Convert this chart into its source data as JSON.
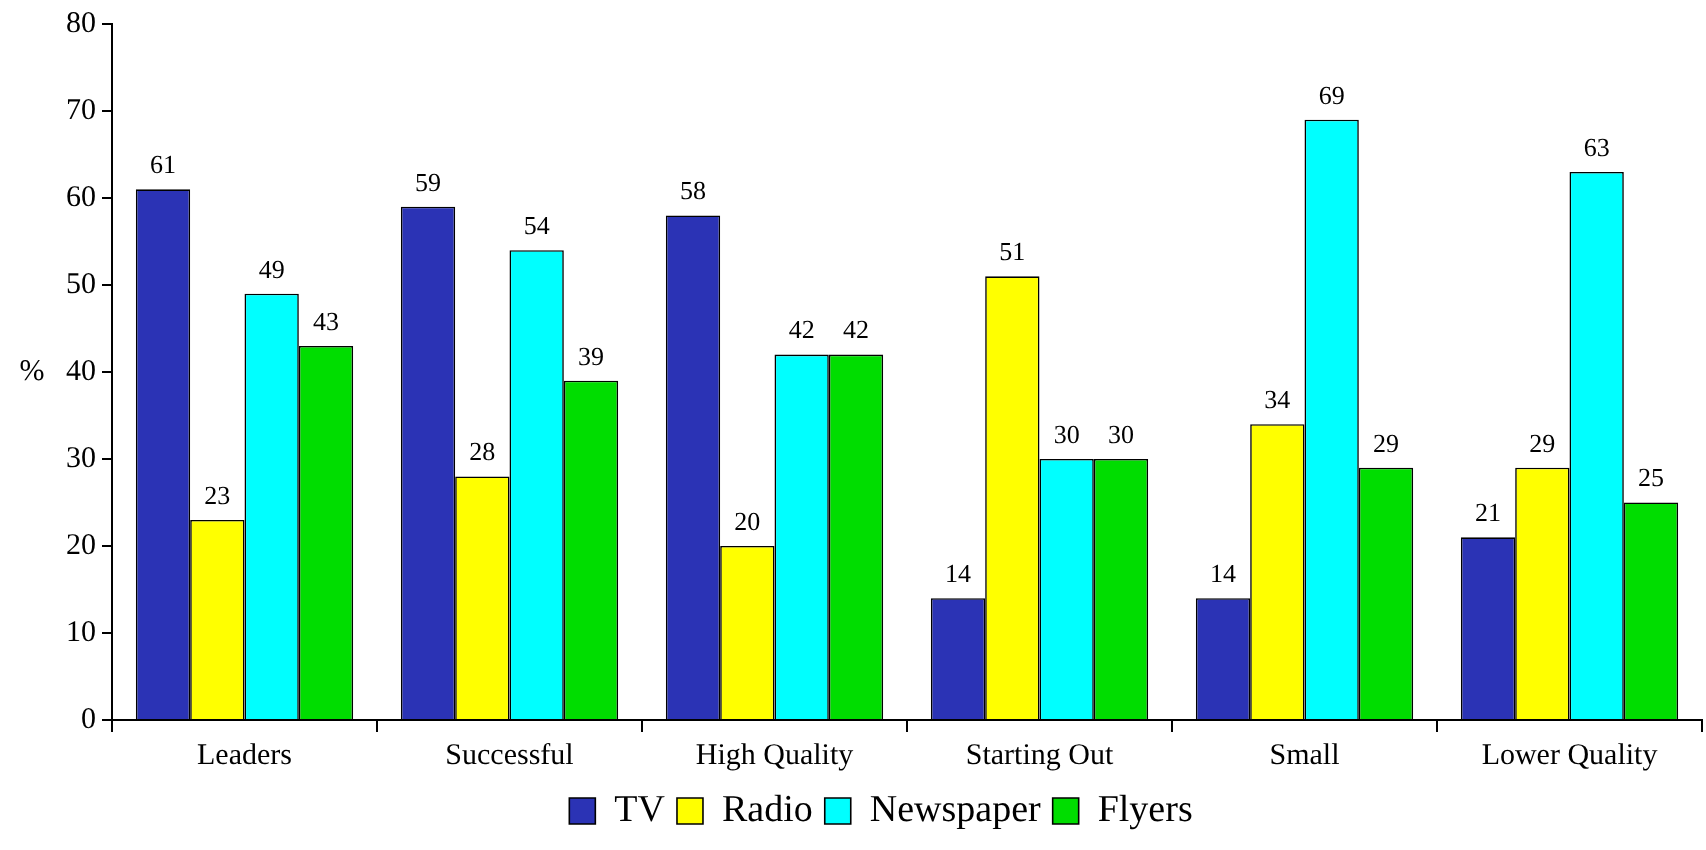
{
  "chart_data": {
    "type": "bar",
    "ylabel": "%",
    "categories": [
      "Leaders",
      "Successful",
      "High Quality",
      "Starting Out",
      "Small",
      "Lower Quality"
    ],
    "series": [
      {
        "name": "TV",
        "color": "#2b33b5",
        "values": [
          61,
          59,
          58,
          14,
          14,
          21
        ]
      },
      {
        "name": "Radio",
        "color": "#ffff00",
        "values": [
          23,
          28,
          20,
          51,
          34,
          29
        ]
      },
      {
        "name": "Newspaper",
        "color": "#00ffff",
        "values": [
          49,
          54,
          42,
          30,
          69,
          63
        ]
      },
      {
        "name": "Flyers",
        "color": "#00dd00",
        "values": [
          43,
          39,
          42,
          30,
          29,
          25
        ]
      }
    ],
    "ylim": [
      0,
      80
    ],
    "yticks": [
      0,
      10,
      20,
      30,
      40,
      50,
      60,
      70,
      80
    ],
    "grid": false,
    "legend": "bottom",
    "data_labels": true
  }
}
